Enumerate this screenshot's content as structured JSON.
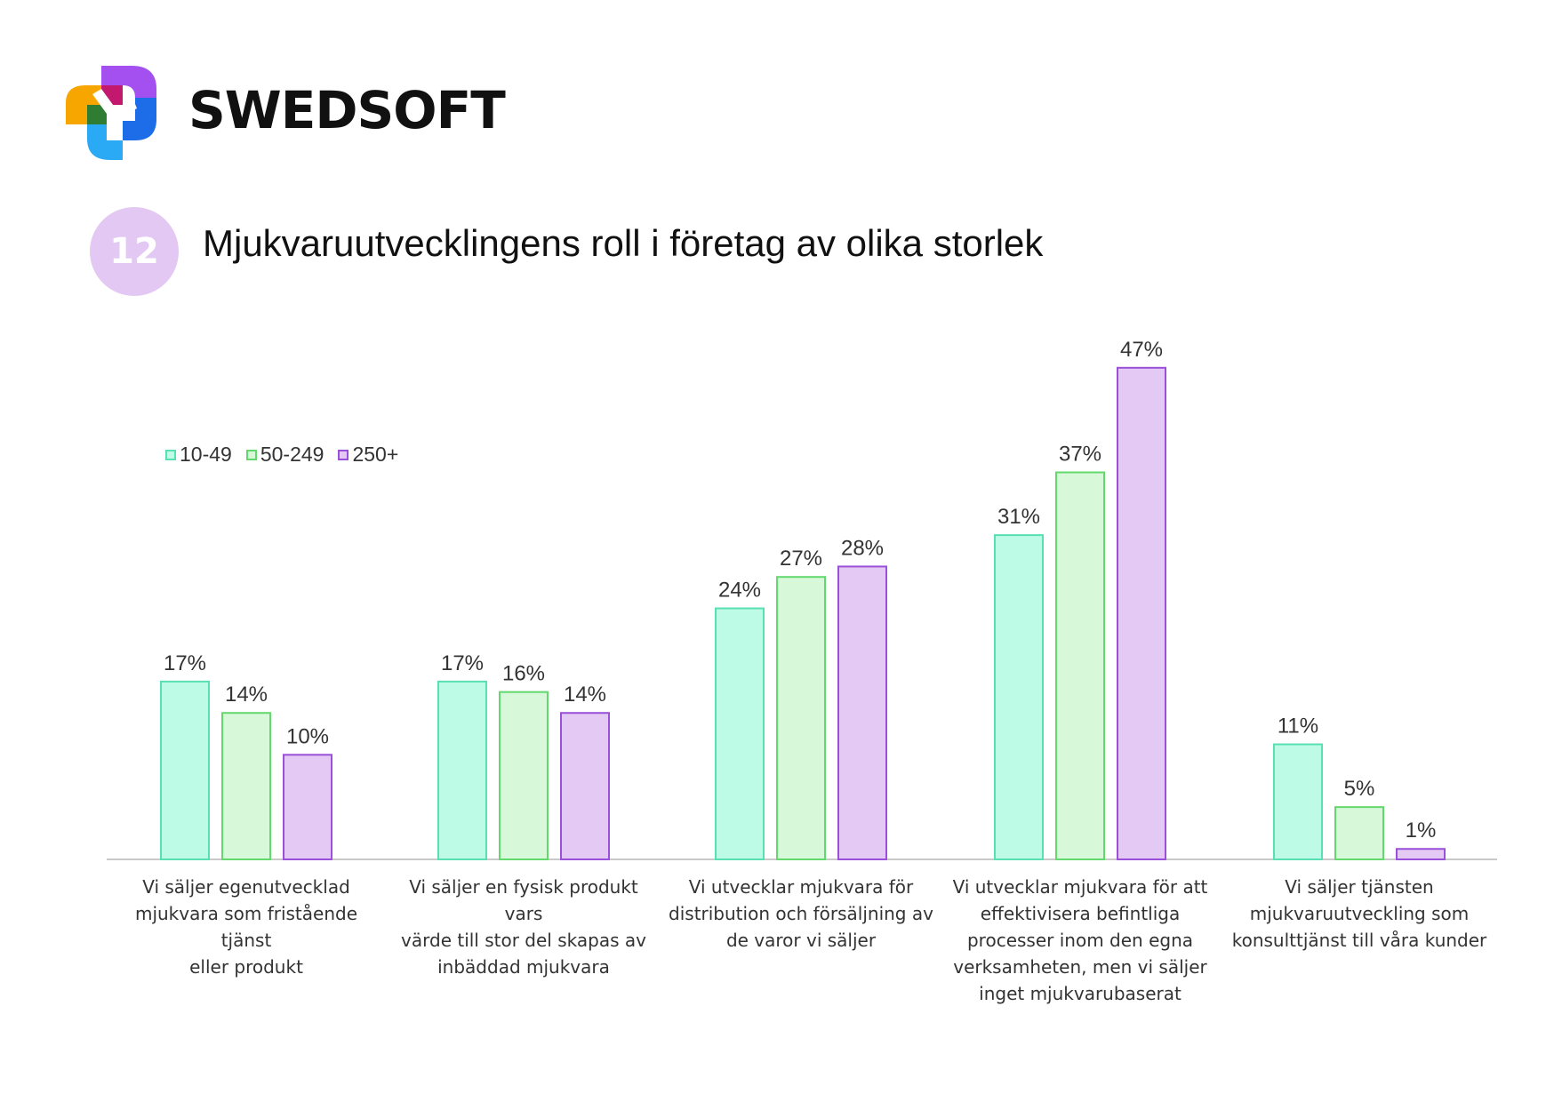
{
  "brand": {
    "name": "SWEDSOFT"
  },
  "badge": {
    "number": "12"
  },
  "chart_data": {
    "type": "bar",
    "title": "Mjukvaruutvecklingens roll i företag av olika storlek",
    "categories": [
      "Vi säljer egenutvecklad mjukvara som fristående tjänst eller produkt",
      "Vi säljer en fysisk produkt vars värde till stor del skapas av inbäddad mjukvara",
      "Vi utvecklar mjukvara för distribution och försäljning av de varor vi säljer",
      "Vi utvecklar mjukvara för att effektivisera befintliga processer inom den egna verksamheten, men vi säljer inget mjukvarubaserat",
      "Vi säljer tjänsten mjukvaruutveckling som konsulttjänst till våra kunder"
    ],
    "category_lines": [
      [
        "Vi säljer egenutvecklad",
        "mjukvara som fristående tjänst",
        "eller produkt"
      ],
      [
        "Vi säljer en fysisk produkt vars",
        "värde till stor del skapas av",
        "inbäddad mjukvara"
      ],
      [
        "Vi utvecklar mjukvara för",
        "distribution och försäljning av",
        "de varor vi säljer"
      ],
      [
        "Vi utvecklar mjukvara för att",
        "effektivisera befintliga",
        "processer inom den egna",
        "verksamheten, men vi säljer",
        "inget mjukvarubaserat"
      ],
      [
        "Vi säljer tjänsten",
        "mjukvaruutveckling som",
        "konsulttjänst till våra kunder"
      ]
    ],
    "series": [
      {
        "name": "10-49",
        "values": [
          17,
          17,
          24,
          31,
          11
        ],
        "labels": [
          "17%",
          "17%",
          "24%",
          "31%",
          "11%"
        ],
        "fill": "#bdfbe6",
        "stroke": "#58dfb3"
      },
      {
        "name": "50-249",
        "values": [
          14,
          16,
          27,
          37,
          5
        ],
        "labels": [
          "14%",
          "16%",
          "27%",
          "37%",
          "5%"
        ],
        "fill": "#d7f8d9",
        "stroke": "#62d86d"
      },
      {
        "name": "250+",
        "values": [
          10,
          14,
          28,
          47,
          1
        ],
        "labels": [
          "10%",
          "14%",
          "28%",
          "47%",
          "1%"
        ],
        "fill": "#e3c9f4",
        "stroke": "#9a50d8"
      }
    ],
    "unit": "%",
    "ylim": [
      0,
      50
    ],
    "grid": false,
    "legend": "top-left",
    "axis_color": "#c9c9c9"
  }
}
